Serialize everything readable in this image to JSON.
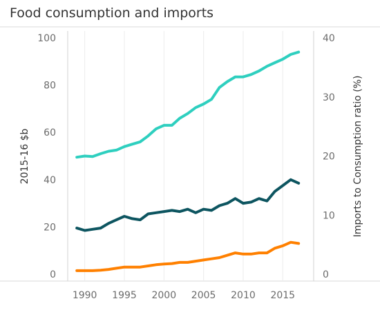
{
  "chart_data": {
    "type": "line",
    "title": "Food consumption and imports",
    "ylabel": "2015-16 $b",
    "y2label": "Imports to Consumption ratio (%)",
    "x_ticks": [
      "1990",
      "1995",
      "2000",
      "2005",
      "2010",
      "2015"
    ],
    "y_ticks": [
      "100",
      "80",
      "60",
      "40",
      "20",
      "0"
    ],
    "y2_ticks": [
      "40",
      "30",
      "20",
      "10",
      "0"
    ],
    "ylim": [
      0,
      100
    ],
    "y2lim": [
      0,
      40
    ],
    "xlim": [
      1989,
      2017
    ],
    "grid": false,
    "x": [
      1989,
      1990,
      1991,
      1992,
      1993,
      1994,
      1995,
      1996,
      1997,
      1998,
      1999,
      2000,
      2001,
      2002,
      2003,
      2004,
      2005,
      2006,
      2007,
      2008,
      2009,
      2010,
      2011,
      2012,
      2013,
      2014,
      2015,
      2016,
      2017
    ],
    "series": [
      {
        "axis": "left",
        "color": "#2ecfbf",
        "values": [
          49.5,
          50,
          49.8,
          51,
          52,
          52.5,
          54,
          55,
          56,
          58.5,
          61.5,
          63,
          63,
          66,
          68,
          70.5,
          72,
          74,
          79,
          81.5,
          83.5,
          83.5,
          84.5,
          86,
          88,
          89.5,
          91,
          93,
          94
        ]
      },
      {
        "axis": "left",
        "color": "#0d5560",
        "values": [
          19.5,
          18.5,
          19,
          19.5,
          21.5,
          23,
          24.5,
          23.5,
          23,
          25.5,
          26,
          26.5,
          27,
          26.5,
          27.5,
          26,
          27.5,
          27,
          29,
          30,
          32,
          30,
          30.5,
          32,
          31,
          35,
          37.5,
          40,
          38.5
        ]
      },
      {
        "axis": "left",
        "color": "#ff8000",
        "values": [
          1.5,
          1.5,
          1.5,
          1.7,
          2,
          2.5,
          3,
          3,
          3,
          3.5,
          4,
          4.3,
          4.5,
          5,
          5,
          5.5,
          6,
          6.5,
          7,
          8,
          9,
          8.5,
          8.5,
          9,
          9,
          11,
          12,
          13.5,
          13
        ]
      }
    ]
  }
}
